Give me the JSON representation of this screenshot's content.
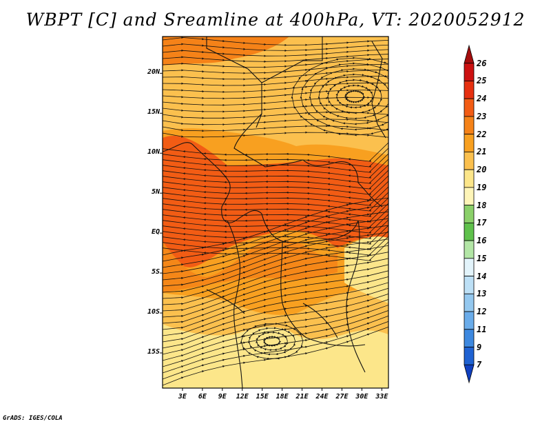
{
  "title": "WBPT [C] and Sreamline at 400hPa, VT: 2020052912",
  "credit": "GrADS: IGES/COLA",
  "axes": {
    "lat_labels": [
      "20N",
      "15N",
      "10N",
      "5N",
      "EQ",
      "5S",
      "10S",
      "15S"
    ],
    "lat_values": [
      20,
      15,
      10,
      5,
      0,
      -5,
      -10,
      -15
    ],
    "lon_labels": [
      "3E",
      "6E",
      "9E",
      "12E",
      "15E",
      "18E",
      "21E",
      "24E",
      "27E",
      "30E",
      "33E"
    ],
    "lon_values": [
      3,
      6,
      9,
      12,
      15,
      18,
      21,
      24,
      27,
      30,
      33
    ],
    "lon_range": [
      0,
      34
    ],
    "lat_range": [
      -19.4,
      24.6
    ]
  },
  "colorbar": {
    "labels": [
      "26",
      "25",
      "24",
      "23",
      "22",
      "21",
      "20",
      "19",
      "18",
      "17",
      "16",
      "15",
      "14",
      "13",
      "12",
      "11",
      "9",
      "7"
    ],
    "colors": [
      "#a50d0d",
      "#cc1111",
      "#e63010",
      "#f25c14",
      "#f58218",
      "#f8a020",
      "#fbc04e",
      "#fce68a",
      "#fef5b8",
      "#8bd06a",
      "#5fc14c",
      "#b3e6a6",
      "#e3f4fb",
      "#bde0f6",
      "#94c8ef",
      "#6aacea",
      "#3d88df",
      "#1f62d2",
      "#1040c0"
    ]
  },
  "map_fill": {
    "colors": [
      "#fce68a",
      "#fbc04e",
      "#f8a020",
      "#f58218",
      "#f25c14"
    ]
  }
}
